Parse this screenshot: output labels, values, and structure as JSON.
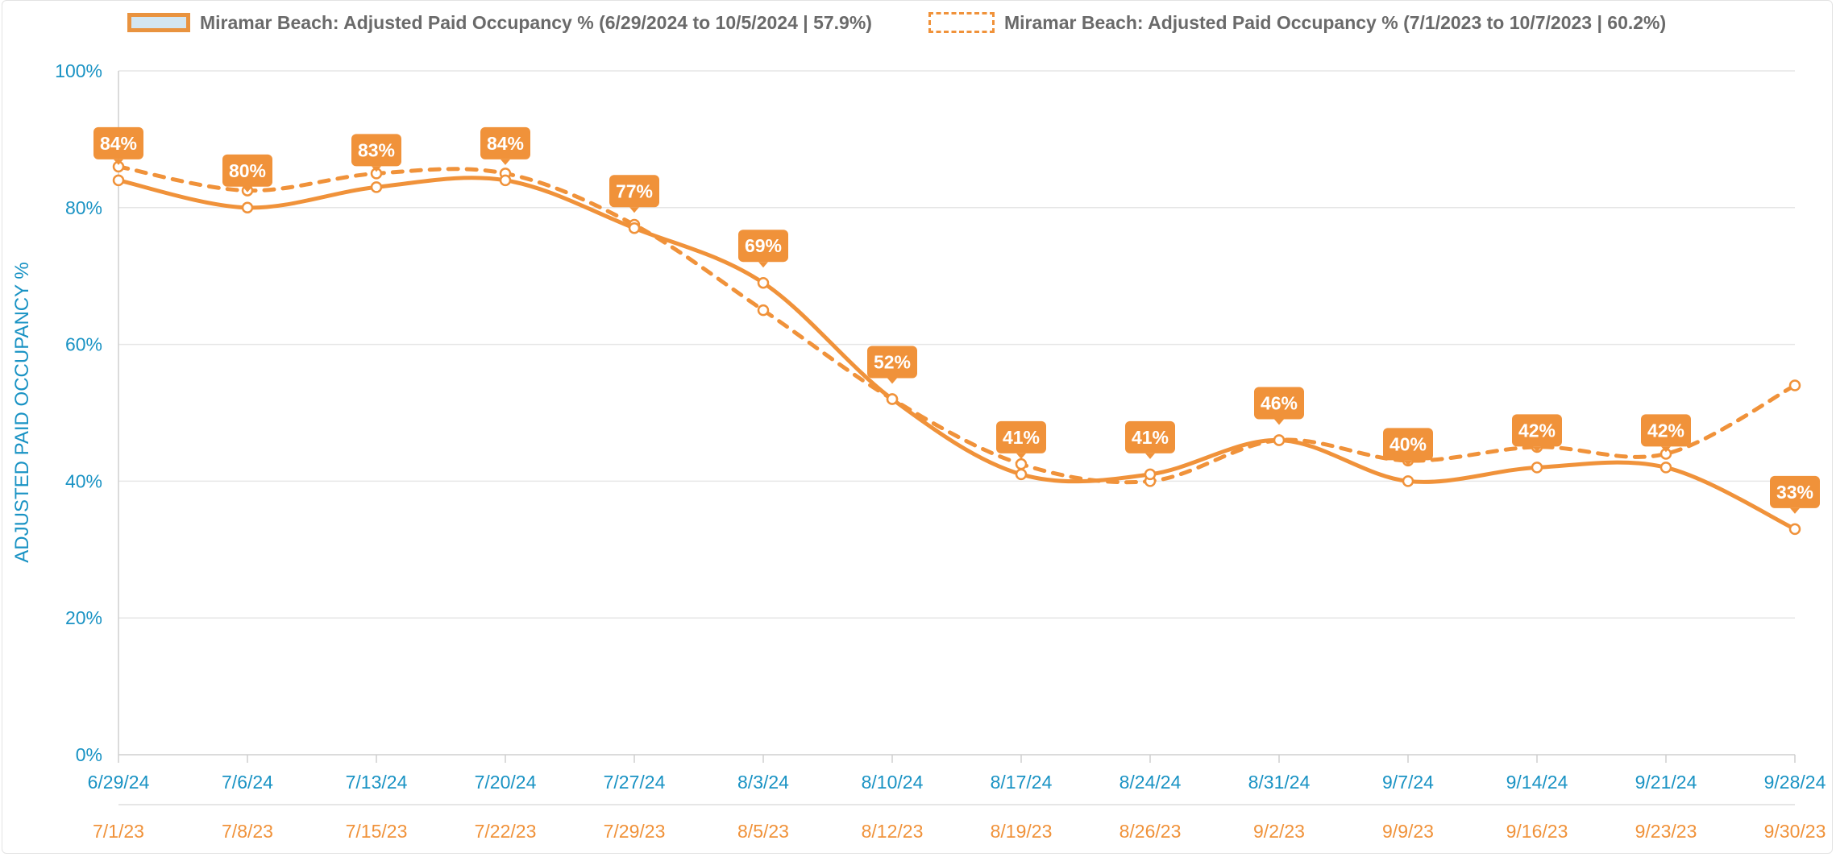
{
  "chart_data": {
    "type": "line",
    "title": "",
    "ylabel": "ADJUSTED PAID OCCUPANCY %",
    "ylim": [
      0,
      100
    ],
    "yticks": [
      "0%",
      "20%",
      "40%",
      "60%",
      "80%",
      "100%"
    ],
    "grid": true,
    "legend_position": "top",
    "x_primary": [
      "6/29/24",
      "7/6/24",
      "7/13/24",
      "7/20/24",
      "7/27/24",
      "8/3/24",
      "8/10/24",
      "8/17/24",
      "8/24/24",
      "8/31/24",
      "9/7/24",
      "9/14/24",
      "9/21/24",
      "9/28/24"
    ],
    "x_secondary": [
      "7/1/23",
      "7/8/23",
      "7/15/23",
      "7/22/23",
      "7/29/23",
      "8/5/23",
      "8/12/23",
      "8/19/23",
      "8/26/23",
      "9/2/23",
      "9/9/23",
      "9/16/23",
      "9/23/23",
      "9/30/23"
    ],
    "series": [
      {
        "name": "Miramar Beach: Adjusted Paid Occupancy % (6/29/2024 to 10/5/2024 | 57.9%)",
        "style": "solid",
        "color": "#F0923A",
        "values": [
          84,
          80,
          83,
          84,
          77,
          69,
          52,
          41,
          41,
          46,
          40,
          42,
          42,
          33
        ],
        "labels": [
          "84%",
          "80%",
          "83%",
          "84%",
          "77%",
          "69%",
          "52%",
          "41%",
          "41%",
          "46%",
          "40%",
          "42%",
          "42%",
          "33%"
        ]
      },
      {
        "name": "Miramar Beach: Adjusted Paid Occupancy % (7/1/2023 to 10/7/2023 | 60.2%)",
        "style": "dashed",
        "color": "#F0923A",
        "values": [
          86,
          82.5,
          85,
          85,
          77.5,
          65,
          52,
          42.5,
          40,
          46,
          43,
          45,
          44,
          54
        ]
      }
    ]
  },
  "colors": {
    "accent": "#F0923A",
    "axis_text": "#1a93c4",
    "grid": "#e6e6e6"
  }
}
